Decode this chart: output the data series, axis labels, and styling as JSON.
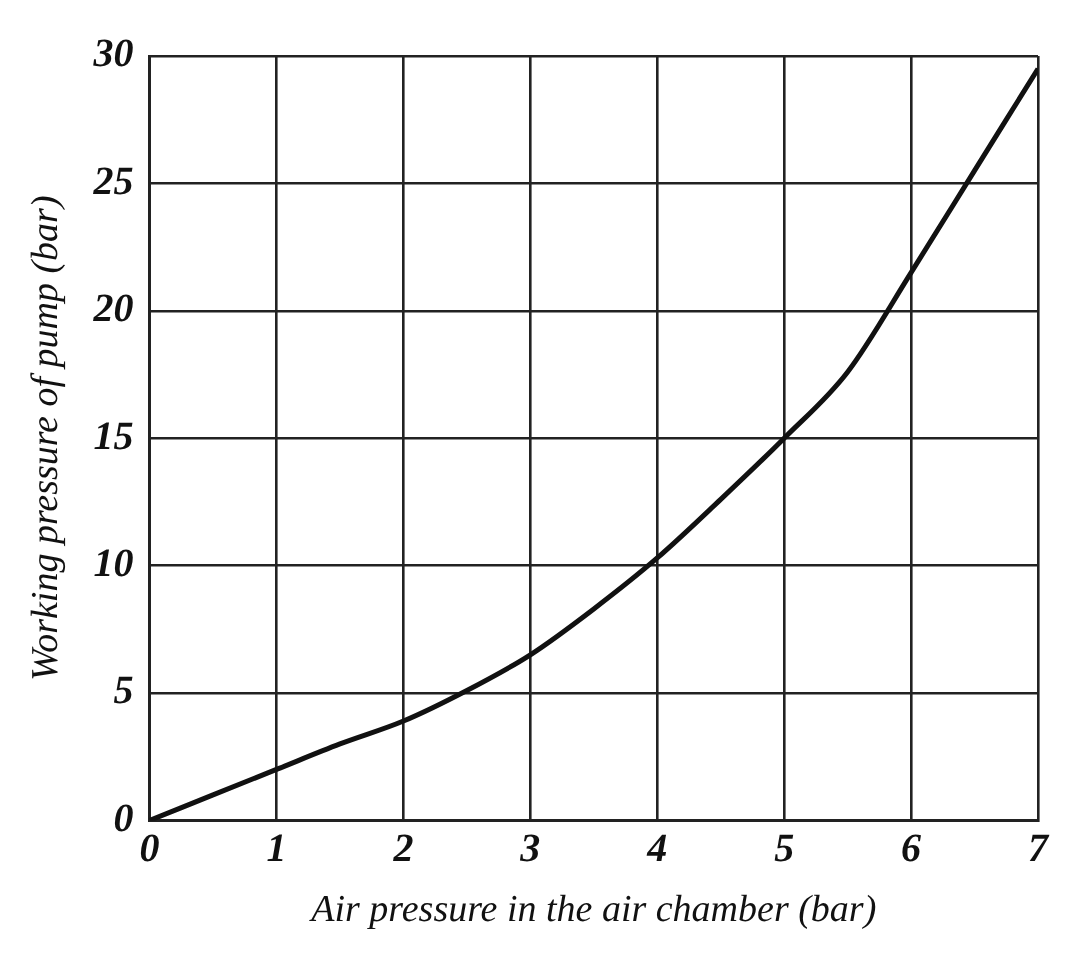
{
  "chart_data": {
    "type": "line",
    "xlabel": "Air pressure in the air chamber (bar)",
    "ylabel": "Working pressure of pump (bar)",
    "x": [
      0,
      0.5,
      1,
      1.5,
      2,
      2.5,
      3,
      3.5,
      4,
      4.5,
      5,
      5.5,
      6,
      6.5,
      7
    ],
    "series": [
      {
        "color": "#111111",
        "values": [
          0,
          1.0,
          2.0,
          3.0,
          3.9,
          5.1,
          6.5,
          8.3,
          10.3,
          12.6,
          15,
          17.6,
          21.5,
          25.5,
          29.5
        ]
      }
    ],
    "xlim": [
      0,
      7
    ],
    "ylim": [
      0,
      30
    ],
    "xticks": [
      0,
      1,
      2,
      3,
      4,
      5,
      6,
      7
    ],
    "yticks": [
      0,
      5,
      10,
      15,
      20,
      25,
      30
    ],
    "grid": true,
    "marker": "none",
    "line_style": "solid"
  }
}
